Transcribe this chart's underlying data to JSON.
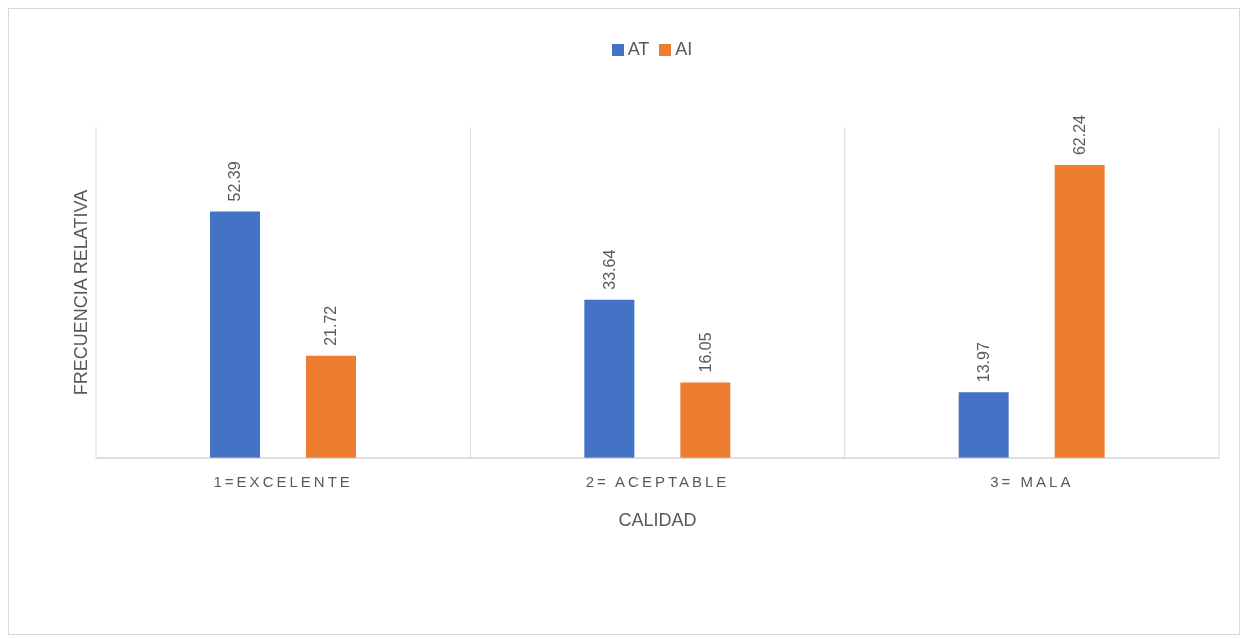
{
  "chart_data": {
    "type": "bar",
    "xlabel": "CALIDAD",
    "ylabel": "FRECUENCIA RELATIVA",
    "categories": [
      "1=EXCELENTE",
      "2= ACEPTABLE",
      "3= MALA"
    ],
    "series": [
      {
        "name": "AT",
        "color": "#4472c4",
        "values": [
          52.39,
          33.64,
          13.97
        ]
      },
      {
        "name": "AI",
        "color": "#ed7d31",
        "values": [
          21.72,
          16.05,
          62.24
        ]
      }
    ],
    "data_labels": true,
    "grid": "x",
    "legend": "top"
  }
}
